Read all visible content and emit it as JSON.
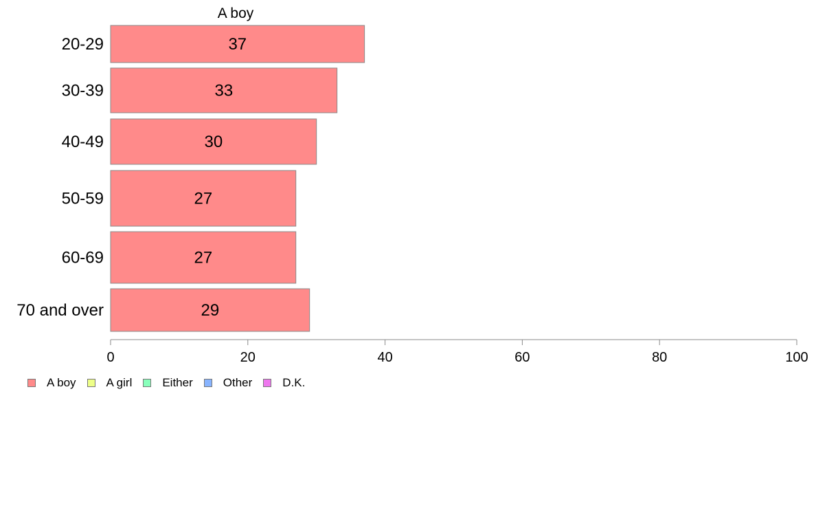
{
  "chart_data": {
    "type": "bar",
    "orientation": "horizontal",
    "stacked": true,
    "top_label": "A boy",
    "categories": [
      "20-29",
      "30-39",
      "40-49",
      "50-59",
      "60-69",
      "70 and over"
    ],
    "series": [
      {
        "name": "A boy",
        "color": "#ff8a8a",
        "values": [
          37,
          33,
          30,
          27,
          27,
          29
        ]
      }
    ],
    "xlim": [
      0,
      100
    ],
    "xticks": [
      0,
      20,
      40,
      60,
      80,
      100
    ],
    "grid": false,
    "legend_position": "bottom-left"
  },
  "legend": [
    {
      "label": "A boy",
      "color": "#ff8a8a"
    },
    {
      "label": "A girl",
      "color": "#eeff88"
    },
    {
      "label": "Either",
      "color": "#88ffbb"
    },
    {
      "label": "Other",
      "color": "#88b4ff"
    },
    {
      "label": "D.K.",
      "color": "#ee77ee"
    }
  ]
}
